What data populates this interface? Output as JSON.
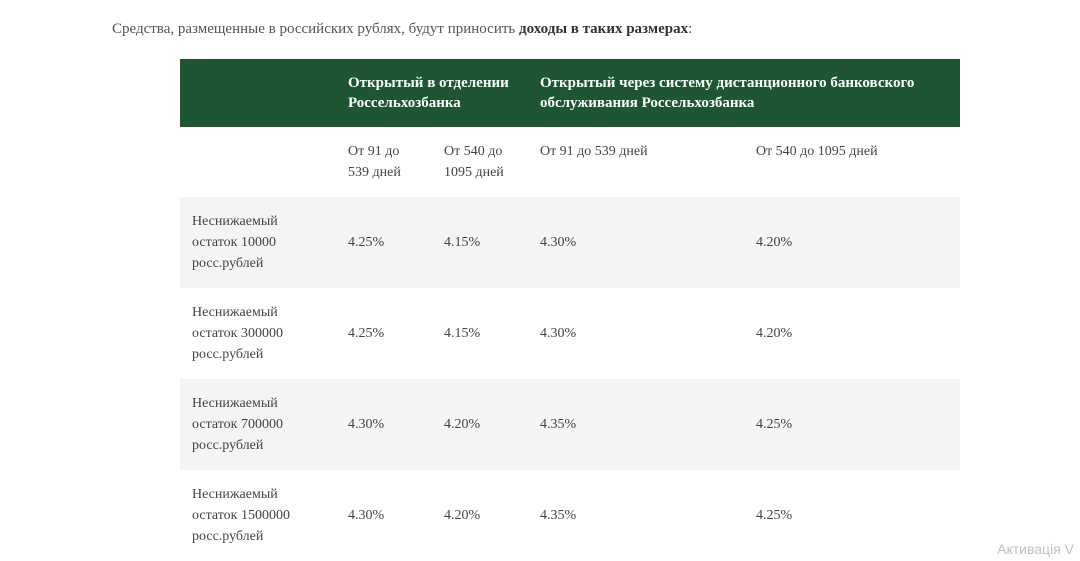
{
  "intro": {
    "prefix": "Средства, размещенные в российских рублях, будут приносить ",
    "bold": "доходы в таких размерах",
    "suffix": ":"
  },
  "table": {
    "header": {
      "blank": "",
      "col_branch": "Открытый в отделении Россельхозбанка",
      "col_remote": "Открытый через систему дистанционного банковского обслуживания Россельхозбанка"
    },
    "subheader": {
      "c0": "",
      "c1": "От 91 до 539 дней",
      "c2": "От 540 до 1095 дней",
      "c3": "От 91 до 539 дней",
      "c4": "От 540 до 1095 дней"
    },
    "rows": [
      {
        "label": "Неснижаемый остаток 10000 росс.рублей",
        "v1": "4.25%",
        "v2": "4.15%",
        "v3": "4.30%",
        "v4": "4.20%"
      },
      {
        "label": "Неснижаемый остаток 300000 росс.рублей",
        "v1": "4.25%",
        "v2": "4.15%",
        "v3": "4.30%",
        "v4": "4.20%"
      },
      {
        "label": "Неснижаемый остаток 700000 росс.рублей",
        "v1": "4.30%",
        "v2": "4.20%",
        "v3": "4.35%",
        "v4": "4.25%"
      },
      {
        "label": "Неснижаемый остаток 1500000 росс.рублей",
        "v1": "4.30%",
        "v2": "4.20%",
        "v3": "4.35%",
        "v4": "4.25%"
      }
    ]
  },
  "watermark": "Активація V"
}
